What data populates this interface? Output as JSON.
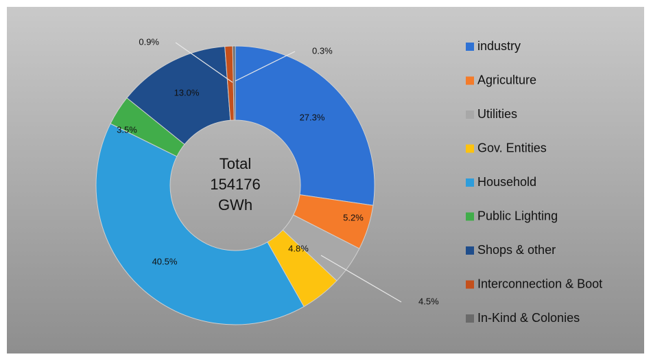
{
  "chart_data": {
    "type": "donut",
    "center_label": [
      "Total",
      "154176",
      "GWh"
    ],
    "categories": [
      "industry",
      "Agriculture",
      "Utilities",
      "Gov. Entities",
      "Household",
      "Public Lighting",
      "Shops & other",
      "Interconnection & Boot",
      "In-Kind & Colonies"
    ],
    "values": [
      27.3,
      5.2,
      4.5,
      4.8,
      40.5,
      3.5,
      13.0,
      0.9,
      0.3
    ],
    "value_labels": [
      "27.3%",
      "5.2%",
      "4.5%",
      "4.8%",
      "40.5%",
      "3.5%",
      "13.0%",
      "0.9%",
      "0.3%"
    ],
    "colors": [
      "#2f72d4",
      "#f47b2a",
      "#a8a8a8",
      "#fdc30f",
      "#2e9ddb",
      "#41ad4a",
      "#1f4d8b",
      "#c4501c",
      "#6a6a6a"
    ],
    "legend": "right"
  }
}
